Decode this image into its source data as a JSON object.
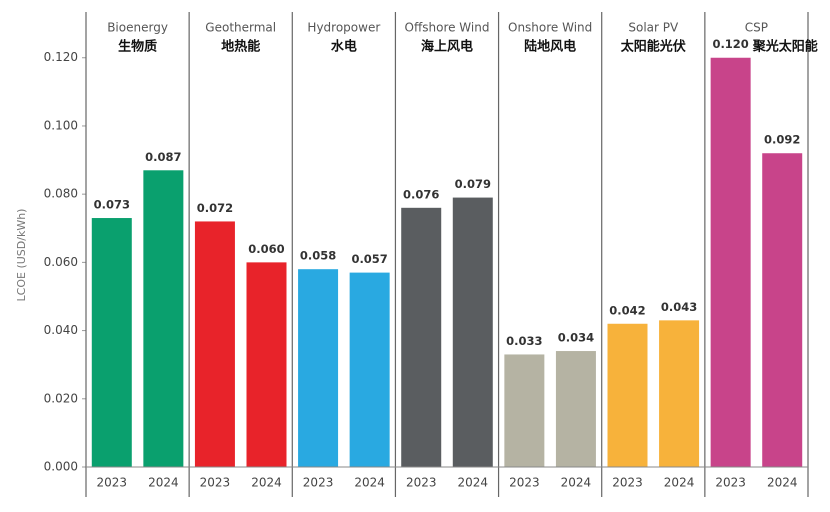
{
  "chart_data": {
    "type": "bar",
    "ylabel": "LCOE (USD/kWh)",
    "ylim": [
      0,
      0.134
    ],
    "yticks": [
      {
        "value": 0,
        "label": "0.000"
      },
      {
        "value": 0.02,
        "label": "0.020"
      },
      {
        "value": 0.04,
        "label": "0.040"
      },
      {
        "value": 0.06,
        "label": "0.060"
      },
      {
        "value": 0.08,
        "label": "0.080"
      },
      {
        "value": 0.1,
        "label": "0.100"
      },
      {
        "value": 0.12,
        "label": "0.120"
      }
    ],
    "panels": [
      {
        "name": "Bioenergy",
        "name_zh": "生物质",
        "color": "#0aa06e",
        "categories": [
          "2023",
          "2024"
        ],
        "values": [
          0.073,
          0.087
        ],
        "value_labels": [
          "0.073",
          "0.087"
        ]
      },
      {
        "name": "Geothermal",
        "name_zh": "地热能",
        "color": "#e8232a",
        "categories": [
          "2023",
          "2024"
        ],
        "values": [
          0.072,
          0.06
        ],
        "value_labels": [
          "0.072",
          "0.060"
        ]
      },
      {
        "name": "Hydropower",
        "name_zh": "水电",
        "color": "#29a9e1",
        "categories": [
          "2023",
          "2024"
        ],
        "values": [
          0.058,
          0.057
        ],
        "value_labels": [
          "0.058",
          "0.057"
        ]
      },
      {
        "name": "Offshore Wind",
        "name_zh": "海上风电",
        "color": "#5a5d60",
        "categories": [
          "2023",
          "2024"
        ],
        "values": [
          0.076,
          0.079
        ],
        "value_labels": [
          "0.076",
          "0.079"
        ]
      },
      {
        "name": "Onshore Wind",
        "name_zh": "陆地风电",
        "color": "#b5b3a3",
        "categories": [
          "2023",
          "2024"
        ],
        "values": [
          0.033,
          0.034
        ],
        "value_labels": [
          "0.033",
          "0.034"
        ]
      },
      {
        "name": "Solar PV",
        "name_zh": "太阳能光伏",
        "color": "#f7b23b",
        "categories": [
          "2023",
          "2024"
        ],
        "values": [
          0.042,
          0.043
        ],
        "value_labels": [
          "0.042",
          "0.043"
        ]
      },
      {
        "name": "CSP",
        "name_zh": "聚光太阳能",
        "color": "#c8448a",
        "categories": [
          "2023",
          "2024"
        ],
        "values": [
          0.12,
          0.092
        ],
        "value_labels": [
          "0.120",
          "0.092"
        ]
      }
    ]
  }
}
